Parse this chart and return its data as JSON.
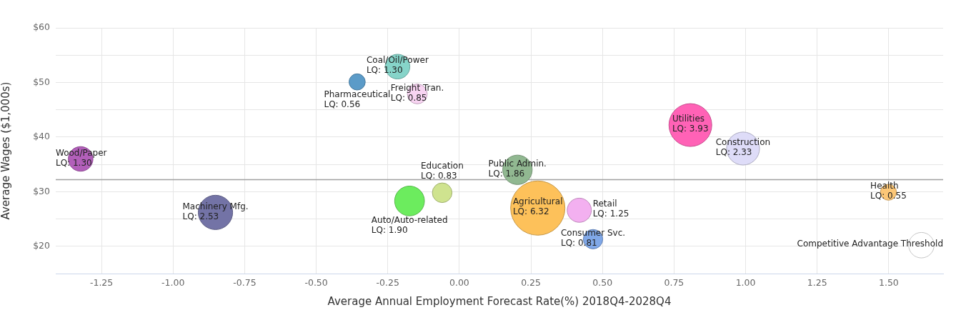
{
  "chart_data": {
    "type": "bubble",
    "xlabel": "Average Annual Employment Forecast Rate(%) 2018Q4-2028Q4",
    "ylabel": "Average Wages ($1,000s)",
    "xlim": [
      -1.41,
      1.69
    ],
    "ylim": [
      15,
      60
    ],
    "xticks": [
      {
        "value": -1.25,
        "label": "-1.25"
      },
      {
        "value": -1,
        "label": "-1.00"
      },
      {
        "value": -0.75,
        "label": "-0.75"
      },
      {
        "value": -0.5,
        "label": "-0.50"
      },
      {
        "value": -0.25,
        "label": "-0.25"
      },
      {
        "value": 0,
        "label": "0.00"
      },
      {
        "value": 0.25,
        "label": "0.25"
      },
      {
        "value": 0.5,
        "label": "0.50"
      },
      {
        "value": 0.75,
        "label": "0.75"
      },
      {
        "value": 1,
        "label": "1.00"
      },
      {
        "value": 1.25,
        "label": "1.25"
      },
      {
        "value": 1.5,
        "label": "1.50"
      }
    ],
    "yticks": [
      {
        "value": 20,
        "label": "$20"
      },
      {
        "value": 25,
        "label": null
      },
      {
        "value": 30,
        "label": "$30"
      },
      {
        "value": 35,
        "label": null
      },
      {
        "value": 40,
        "label": "$40"
      },
      {
        "value": 45,
        "label": null
      },
      {
        "value": 50,
        "label": "$50"
      },
      {
        "value": 55,
        "label": null
      },
      {
        "value": 60,
        "label": "$60"
      }
    ],
    "grid": true,
    "legend": false,
    "ref_lines": [
      {
        "axis": "y",
        "value": 32.2,
        "color": "#a0a0a0"
      }
    ],
    "series": [
      {
        "name": "Wood/Paper",
        "color": "#b25fba",
        "x": [
          -1.323
        ],
        "values": [
          36.0
        ],
        "sizes": [
          0.206
        ]
      },
      {
        "name": "Machinery Mfg.",
        "color": "#7373a6",
        "x": [
          -0.852
        ],
        "values": [
          26.2
        ],
        "sizes": [
          0.4
        ]
      },
      {
        "name": "Pharmaceutical",
        "color": "#5b9bc8",
        "x": [
          -0.357
        ],
        "values": [
          50.1
        ],
        "sizes": [
          0.089
        ]
      },
      {
        "name": "Coal/Oil/Power",
        "color": "#86d4c9",
        "x": [
          -0.216
        ],
        "values": [
          52.9
        ],
        "sizes": [
          0.206
        ]
      },
      {
        "name": "Freight Tran.",
        "color": "#f8d4f2",
        "x": [
          -0.147
        ],
        "values": [
          47.9
        ],
        "sizes": [
          0.134
        ]
      },
      {
        "name": "Auto/Auto-related",
        "color": "#6cec5e",
        "x": [
          -0.174
        ],
        "values": [
          28.3
        ],
        "sizes": [
          0.301
        ]
      },
      {
        "name": "Education",
        "color": "#cfe38f",
        "x": [
          -0.06
        ],
        "values": [
          29.8
        ],
        "sizes": [
          0.131
        ]
      },
      {
        "name": "Public Admin.",
        "color": "#91b891",
        "x": [
          0.203
        ],
        "values": [
          34.0
        ],
        "sizes": [
          0.294
        ]
      },
      {
        "name": "Agricultural",
        "color": "#fdc15a",
        "x": [
          0.274
        ],
        "values": [
          27.0
        ],
        "sizes": [
          1
        ]
      },
      {
        "name": "Retail",
        "color": "#f3b0f0",
        "x": [
          0.419
        ],
        "values": [
          26.6
        ],
        "sizes": [
          0.198
        ]
      },
      {
        "name": "Consumer Svc.",
        "color": "#80a8e8",
        "x": [
          0.467
        ],
        "values": [
          21.3
        ],
        "sizes": [
          0.128
        ]
      },
      {
        "name": "Utilities",
        "color": "#ff62b6",
        "x": [
          0.807
        ],
        "values": [
          42.2
        ],
        "sizes": [
          0.622
        ]
      },
      {
        "name": "Construction",
        "color": "#dedcf8",
        "x": [
          0.991
        ],
        "values": [
          37.9
        ],
        "sizes": [
          0.369
        ]
      },
      {
        "name": "Health",
        "color": "#fcc777",
        "x": [
          1.499
        ],
        "values": [
          29.9
        ],
        "sizes": [
          0.087
        ]
      },
      {
        "name": "Competitive Advantage Threshold",
        "color": "#ffffff",
        "x": [
          1.614
        ],
        "values": [
          20.2
        ],
        "sizes": [
          0.22
        ]
      }
    ],
    "annotations": [
      {
        "text": "LQ: 1.30",
        "x": -1.323,
        "y": 36.0
      },
      {
        "text": "LQ: 2.53",
        "x": -0.852,
        "y": 26.2
      },
      {
        "text": "LQ: 0.56",
        "x": -0.357,
        "y": 50.1
      },
      {
        "text": "LQ: 1.30",
        "x": -0.216,
        "y": 52.9
      },
      {
        "text": "LQ: 0.85",
        "x": -0.147,
        "y": 47.9
      },
      {
        "text": "LQ: 1.90",
        "x": -0.174,
        "y": 28.3
      },
      {
        "text": "LQ: 0.83",
        "x": -0.06,
        "y": 29.8
      },
      {
        "text": "LQ: 1.86",
        "x": 0.203,
        "y": 34.0
      },
      {
        "text": "LQ: 6.32",
        "x": 0.274,
        "y": 27.0
      },
      {
        "text": "LQ: 1.25",
        "x": 0.419,
        "y": 26.6
      },
      {
        "text": "LQ: 0.81",
        "x": 0.467,
        "y": 21.3
      },
      {
        "text": "LQ: 3.93",
        "x": 0.807,
        "y": 42.2
      },
      {
        "text": "LQ: 2.33",
        "x": 0.991,
        "y": 37.9
      },
      {
        "text": "LQ: 0.55",
        "x": 1.499,
        "y": 29.9
      }
    ]
  }
}
